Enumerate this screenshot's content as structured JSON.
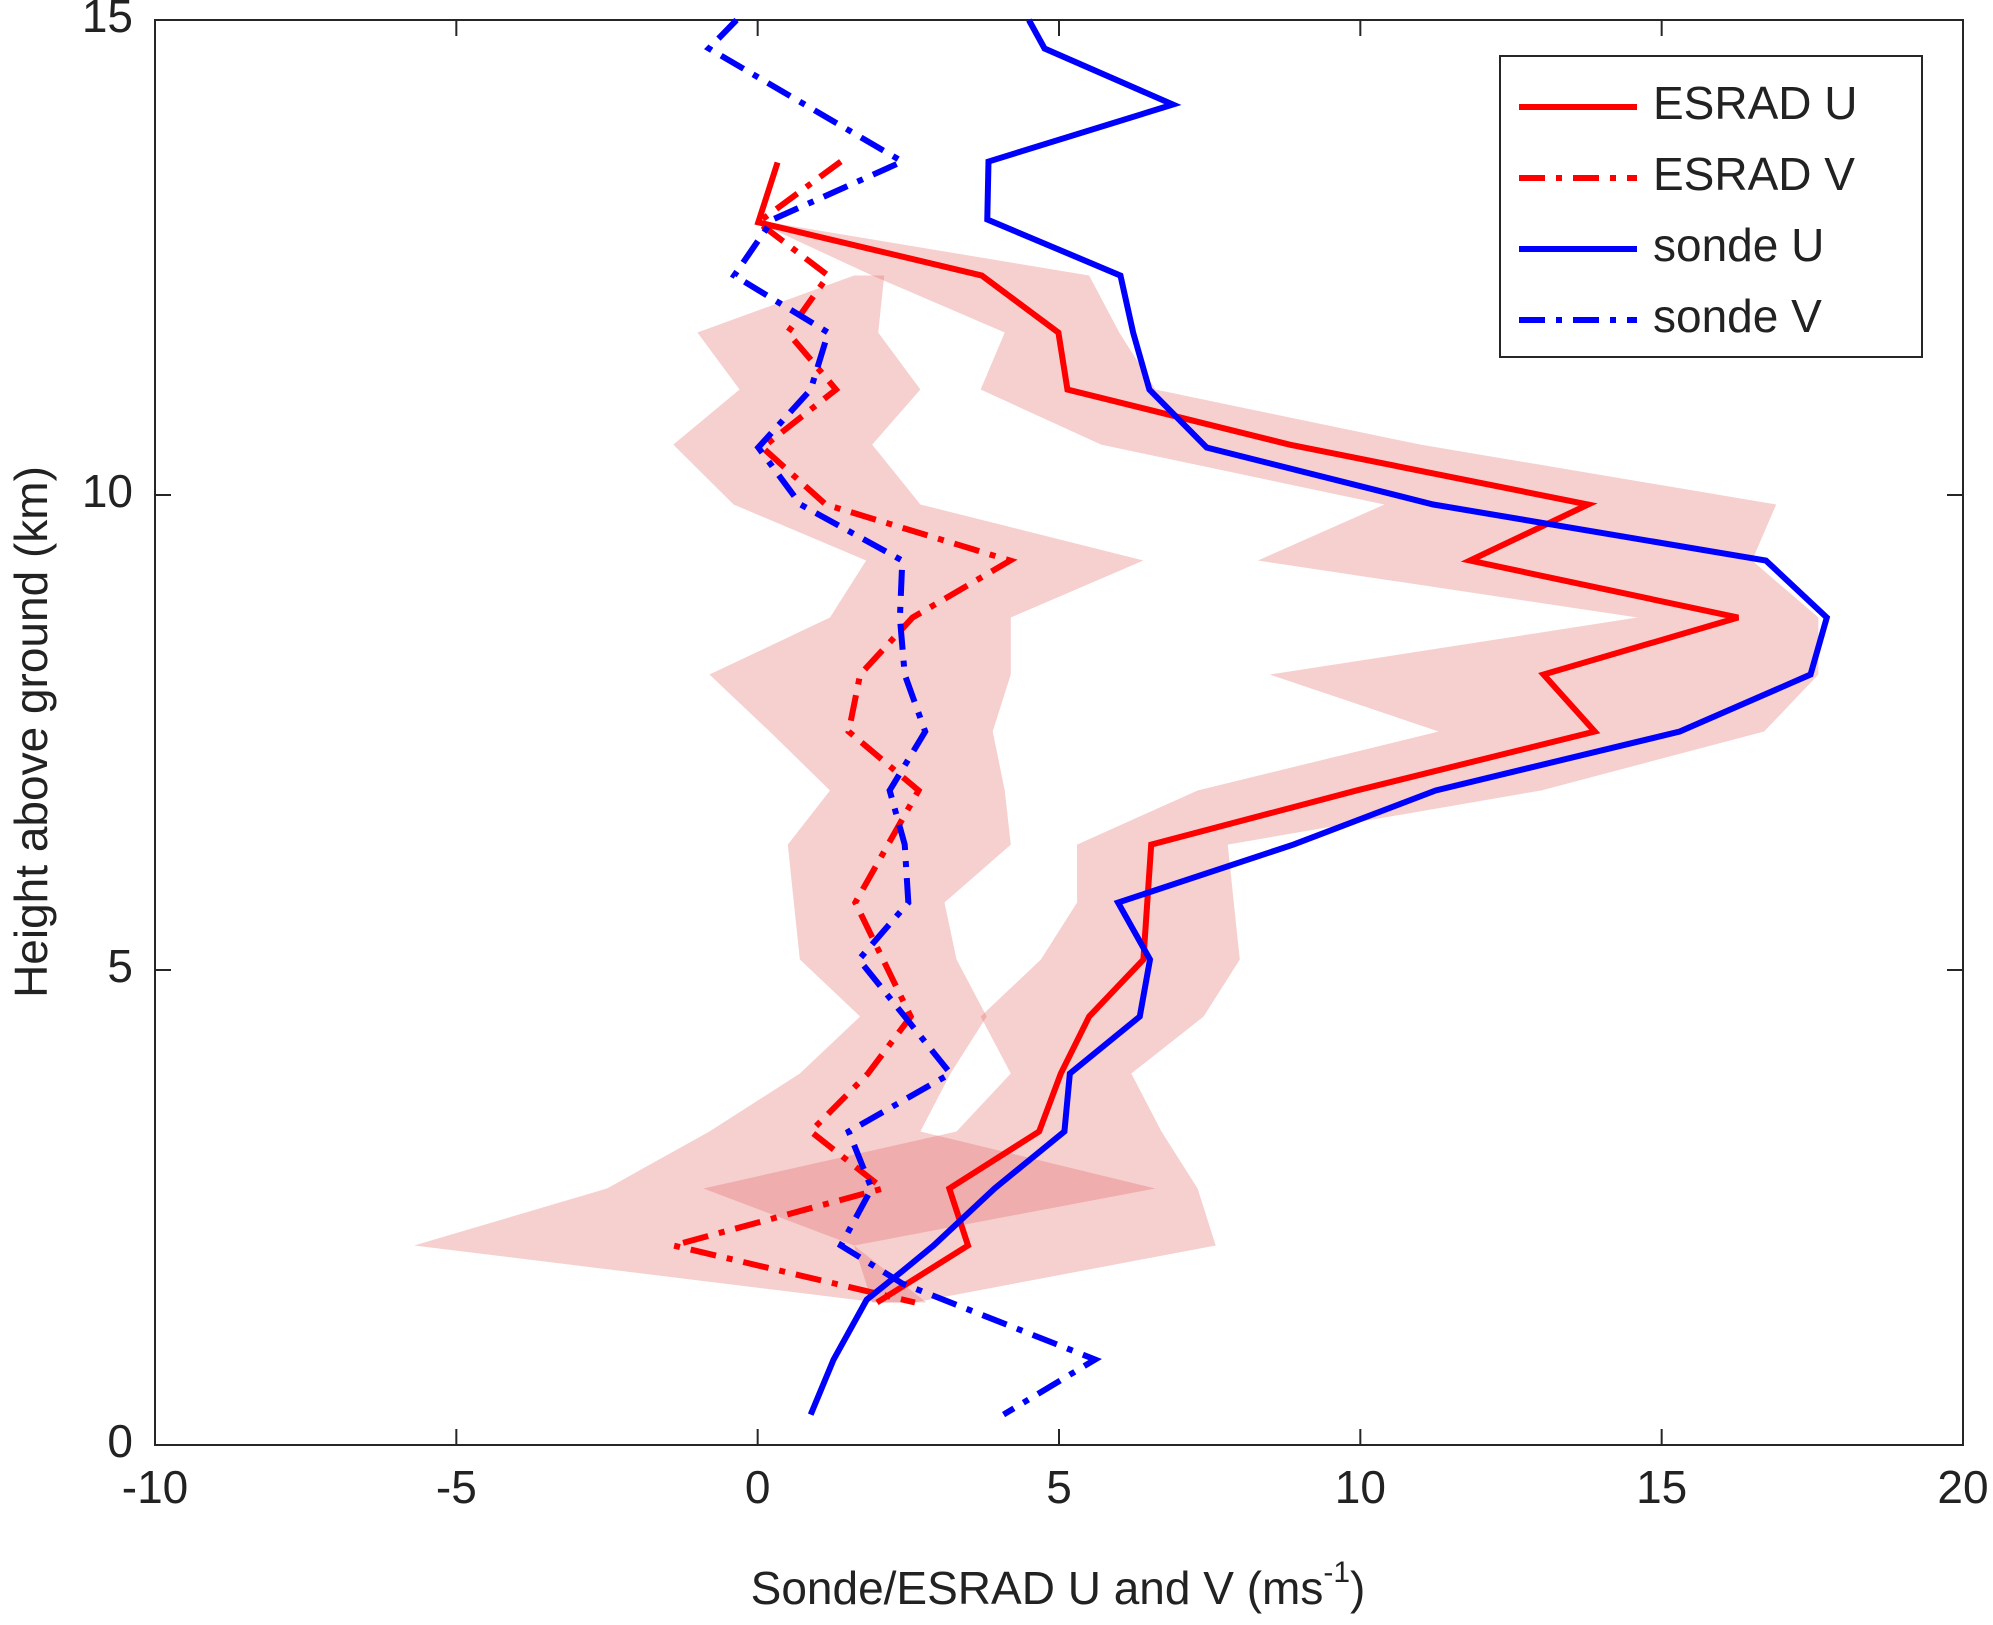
{
  "chart_data": {
    "type": "line",
    "x_label": [
      "Sonde/ESRAD U and V (ms",
      "-1",
      ")"
    ],
    "y_label": "Height above ground (km)",
    "xlim": [
      -10,
      20
    ],
    "xticks": [
      -10,
      -5,
      0,
      5,
      10,
      15,
      20
    ],
    "ylim": [
      0,
      15
    ],
    "yticks": [
      0,
      5,
      10,
      15
    ],
    "legend": "upper right",
    "bands": [
      {
        "color": "#e06060",
        "y": [
          12.87,
          12.31,
          11.71,
          11.11,
          10.53,
          9.9,
          9.31,
          8.71,
          8.11,
          7.51,
          6.89,
          6.32,
          5.71,
          5.11,
          4.51,
          3.91,
          3.3,
          2.7,
          2.1,
          1.5
        ],
        "x_low": [
          0.0,
          1.9,
          4.1,
          3.7,
          5.7,
          10.4,
          8.3,
          14.6,
          8.5,
          11.3,
          7.3,
          5.3,
          5.3,
          4.7,
          3.7,
          4.2,
          3.3,
          -0.9,
          1.6,
          1.9
        ],
        "x_high": [
          0.2,
          5.5,
          6.0,
          6.6,
          11.0,
          16.9,
          16.5,
          17.6,
          17.6,
          16.7,
          13.0,
          7.8,
          7.9,
          8.0,
          7.4,
          6.2,
          6.7,
          7.3,
          7.6,
          2.6
        ]
      },
      {
        "color": "#e06060",
        "y": [
          12.31,
          11.71,
          11.11,
          10.53,
          9.9,
          9.31,
          8.71,
          8.11,
          7.51,
          6.89,
          6.32,
          5.71,
          5.11,
          4.51,
          3.91,
          3.3,
          2.7,
          2.1,
          1.5
        ],
        "x_low": [
          1.6,
          -1.0,
          -0.3,
          -1.4,
          -0.4,
          1.8,
          1.2,
          -0.8,
          0.2,
          1.2,
          0.5,
          0.6,
          0.7,
          1.7,
          0.7,
          -0.8,
          -2.5,
          -5.7,
          2.0
        ],
        "x_high": [
          2.1,
          2.0,
          2.7,
          1.9,
          2.7,
          6.4,
          4.2,
          4.2,
          3.9,
          4.1,
          4.2,
          3.1,
          3.3,
          3.8,
          3.2,
          2.7,
          6.6,
          1.6,
          2.8
        ]
      }
    ],
    "series": [
      {
        "name": "ESRAD U",
        "color": "#ff0000",
        "dash": false,
        "x": [
          0.33,
          0.01,
          3.72,
          4.99,
          5.14,
          8.83,
          13.78,
          11.82,
          16.27,
          13.04,
          13.89,
          9.94,
          6.53,
          6.4,
          5.5,
          5.03,
          4.67,
          3.18,
          3.49,
          1.98
        ],
        "y": [
          13.5,
          12.87,
          12.31,
          11.71,
          11.11,
          10.53,
          9.9,
          9.31,
          8.71,
          8.11,
          7.51,
          6.89,
          6.32,
          5.11,
          4.51,
          3.91,
          3.3,
          2.7,
          2.1,
          1.5
        ]
      },
      {
        "name": "ESRAD V",
        "color": "#ff0000",
        "dash": true,
        "x": [
          1.38,
          0.01,
          1.17,
          0.5,
          1.3,
          0.08,
          1.13,
          4.19,
          2.57,
          1.7,
          1.51,
          2.67,
          1.62,
          2.54,
          1.83,
          0.88,
          2.08,
          -1.4,
          2.61
        ],
        "y": [
          13.51,
          12.87,
          12.31,
          11.71,
          11.11,
          10.5,
          9.9,
          9.31,
          8.71,
          8.11,
          7.51,
          6.89,
          5.71,
          4.51,
          3.91,
          3.3,
          2.7,
          2.1,
          1.5
        ]
      },
      {
        "name": "sonde U",
        "color": "#0000ff",
        "dash": false,
        "x": [
          4.5,
          4.76,
          6.89,
          3.83,
          3.81,
          6.02,
          6.23,
          6.5,
          7.45,
          11.21,
          16.73,
          17.74,
          17.47,
          15.3,
          11.25,
          8.89,
          5.98,
          6.51,
          6.34,
          5.18,
          5.09,
          3.93,
          2.92,
          2.4,
          1.81,
          1.26,
          0.88
        ],
        "y": [
          15.0,
          14.7,
          14.11,
          13.51,
          12.9,
          12.31,
          11.71,
          11.11,
          10.5,
          9.9,
          9.31,
          8.71,
          8.11,
          7.51,
          6.89,
          6.32,
          5.71,
          5.11,
          4.51,
          3.91,
          3.3,
          2.7,
          2.1,
          1.83,
          1.53,
          0.9,
          0.32
        ]
      },
      {
        "name": "sonde V",
        "color": "#0000ff",
        "dash": true,
        "x": [
          -0.35,
          -0.81,
          2.4,
          0.25,
          -0.39,
          1.17,
          0.88,
          0.01,
          0.71,
          2.4,
          2.36,
          2.44,
          2.78,
          2.19,
          2.44,
          2.5,
          1.68,
          2.44,
          3.2,
          1.51,
          1.89,
          1.38,
          2.4,
          5.6,
          4.08
        ],
        "y": [
          15.0,
          14.7,
          13.51,
          12.9,
          12.31,
          11.71,
          11.11,
          10.5,
          9.9,
          9.31,
          8.71,
          8.11,
          7.51,
          6.89,
          6.32,
          5.71,
          5.11,
          4.51,
          3.91,
          3.3,
          2.7,
          2.1,
          1.7,
          0.9,
          0.32
        ]
      }
    ]
  }
}
